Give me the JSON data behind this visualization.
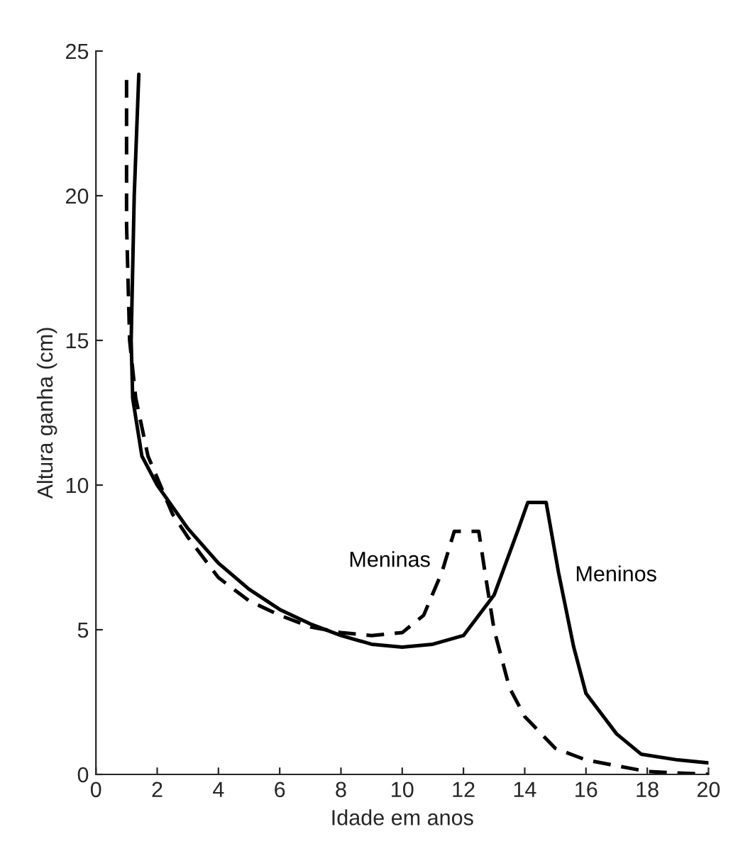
{
  "chart_data": {
    "type": "line",
    "xlabel": "Idade em anos",
    "ylabel": "Altura ganha (cm)",
    "xlim": [
      0,
      20
    ],
    "ylim": [
      0,
      25
    ],
    "xticks": [
      0,
      2,
      4,
      6,
      8,
      10,
      12,
      14,
      16,
      18,
      20
    ],
    "yticks": [
      0,
      5,
      10,
      15,
      20,
      25
    ],
    "grid": false,
    "legend": false,
    "series": [
      {
        "name": "Meninos",
        "color": "#000000",
        "line_style": "solid",
        "x": [
          1.4,
          1.25,
          1.15,
          1.2,
          1.5,
          2,
          3,
          4,
          5,
          6,
          7,
          8,
          9,
          10,
          11,
          12,
          13,
          13.8,
          14.1,
          14.7,
          15.1,
          15.6,
          16,
          17,
          17.8,
          19,
          20
        ],
        "values": [
          24.2,
          20,
          15,
          13,
          11,
          10,
          8.5,
          7.3,
          6.4,
          5.7,
          5.2,
          4.8,
          4.5,
          4.4,
          4.5,
          4.8,
          6.2,
          8.5,
          9.4,
          9.4,
          7,
          4.4,
          2.8,
          1.4,
          0.7,
          0.5,
          0.4
        ]
      },
      {
        "name": "Meninas",
        "color": "#000000",
        "line_style": "dashed",
        "x": [
          1.0,
          1.0,
          1.1,
          1.3,
          1.7,
          2.5,
          3,
          4,
          5,
          6,
          7,
          8,
          9,
          10,
          10.7,
          11.3,
          11.7,
          12.5,
          12.7,
          13,
          13.5,
          14,
          15,
          16,
          17,
          18,
          20
        ],
        "values": [
          24,
          19,
          15,
          13,
          11,
          9,
          8.2,
          6.8,
          6,
          5.5,
          5.1,
          4.9,
          4.8,
          4.9,
          5.5,
          7,
          8.4,
          8.4,
          7,
          5,
          3,
          2,
          0.9,
          0.5,
          0.3,
          0.1,
          0
        ]
      }
    ]
  }
}
